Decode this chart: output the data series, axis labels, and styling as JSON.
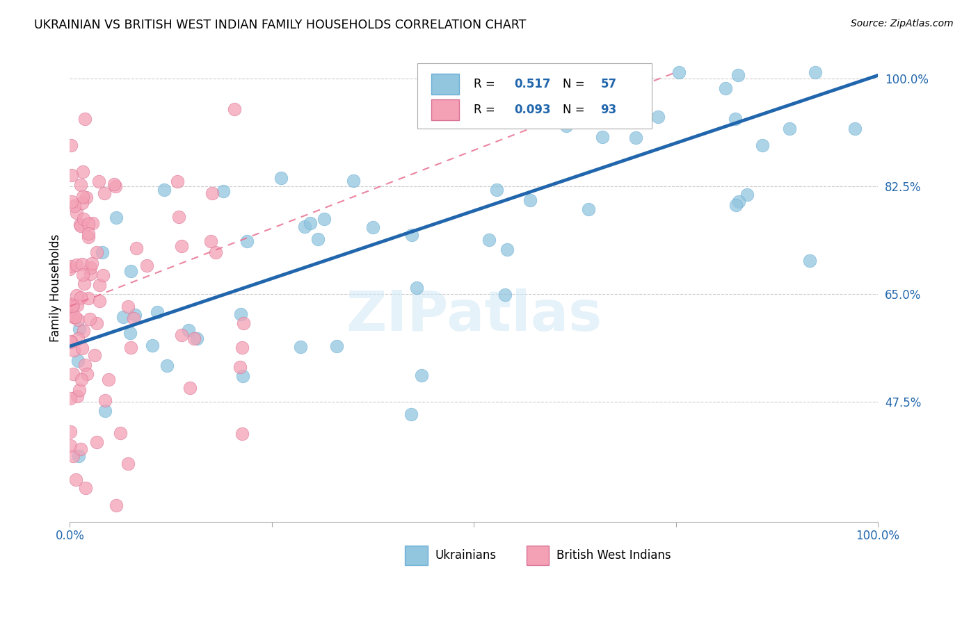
{
  "title": "UKRAINIAN VS BRITISH WEST INDIAN FAMILY HOUSEHOLDS CORRELATION CHART",
  "source": "Source: ZipAtlas.com",
  "ylabel": "Family Households",
  "blue_color": "#92c5de",
  "blue_edge_color": "#6baed6",
  "pink_color": "#f4a0b5",
  "pink_edge_color": "#d87093",
  "blue_line_color": "#2166ac",
  "pink_line_color": "#e87090",
  "r_color": "#2166ac",
  "grid_color": "#cccccc",
  "legend_R1": "0.517",
  "legend_N1": "57",
  "legend_R2": "0.093",
  "legend_N2": "93",
  "xlim": [
    0.0,
    1.0
  ],
  "ylim": [
    0.28,
    1.04
  ],
  "yticks": [
    0.475,
    0.65,
    0.825,
    1.0
  ],
  "ytick_labels": [
    "47.5%",
    "65.0%",
    "82.5%",
    "100.0%"
  ],
  "xticks": [
    0.0,
    0.25,
    0.5,
    0.75,
    1.0
  ],
  "xtick_labels_show": [
    "0.0%",
    "",
    "",
    "",
    "100.0%"
  ],
  "blue_line_x0": 0.0,
  "blue_line_y0": 0.565,
  "blue_line_x1": 1.0,
  "blue_line_y1": 1.005,
  "pink_line_x0": 0.0,
  "pink_line_y0": 0.63,
  "pink_line_x1": 0.75,
  "pink_line_y1": 1.01,
  "watermark": "ZIPatlas",
  "watermark_color": "#d0e8f5"
}
